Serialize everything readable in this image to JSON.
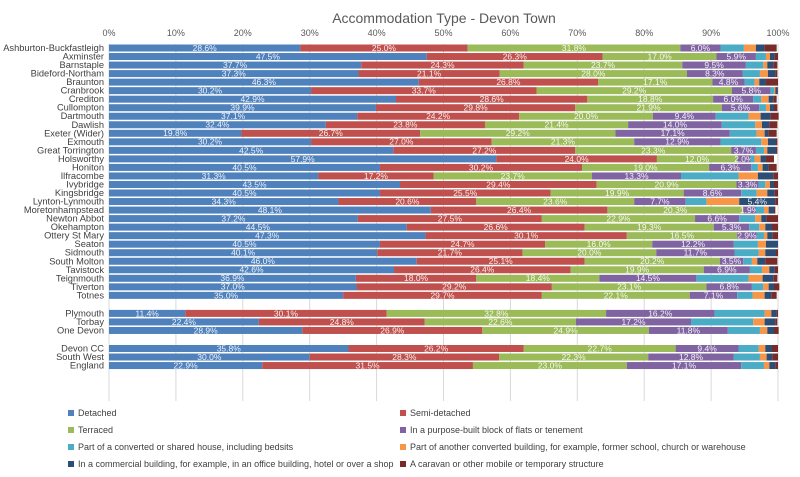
{
  "chart_data": {
    "type": "bar",
    "orientation": "horizontal",
    "stacked": "100%",
    "title": "Accommodation Type - Devon Town",
    "xlim": [
      0,
      100
    ],
    "x_ticks": [
      "0%",
      "10%",
      "20%",
      "30%",
      "40%",
      "50%",
      "60%",
      "70%",
      "80%",
      "90%",
      "100%"
    ],
    "grid": true,
    "legend_position": "bottom",
    "series_names": [
      "Detached",
      "Semi-detached",
      "Terraced",
      "In a purpose-built block of flats or tenement",
      "Part of a converted or shared house, including bedsits",
      "Part of another converted building, for example, former school, church or warehouse",
      "In a commercial building, for example, in an office building, hotel or over a shop",
      "A caravan or other mobile or temporary structure"
    ],
    "colors": [
      "#4f81bd",
      "#c0504d",
      "#9bbb59",
      "#8064a2",
      "#4bacc6",
      "#f79646",
      "#2c4d75",
      "#772c2a"
    ],
    "groups": [
      [
        {
          "category": "Ashburton-Buckfastleigh",
          "values": [
            28.6,
            25.0,
            31.8,
            6.0,
            3.5,
            1.8,
            1.3,
            1.8
          ]
        },
        {
          "category": "Axminster",
          "values": [
            47.5,
            26.3,
            17.0,
            5.9,
            1.5,
            0.6,
            0.7,
            0.5
          ]
        },
        {
          "category": "Barnstaple",
          "values": [
            37.7,
            24.3,
            23.7,
            9.5,
            2.6,
            0.6,
            0.9,
            0.6
          ]
        },
        {
          "category": "Bideford-Northam",
          "values": [
            37.3,
            21.1,
            28.0,
            8.3,
            2.6,
            1.2,
            1.1,
            0.3
          ]
        },
        {
          "category": "Braunton",
          "values": [
            46.3,
            26.8,
            17.1,
            4.8,
            1.5,
            0.7,
            1.0,
            1.8
          ]
        },
        {
          "category": "Cranbrook",
          "values": [
            30.2,
            33.7,
            29.2,
            5.8,
            0.5,
            0.2,
            0.3,
            0.1
          ]
        },
        {
          "category": "Crediton",
          "values": [
            42.9,
            28.6,
            18.8,
            6.0,
            1.2,
            1.1,
            0.7,
            0.5
          ]
        },
        {
          "category": "Cullompton",
          "values": [
            39.9,
            29.8,
            21.9,
            5.6,
            1.0,
            0.6,
            0.6,
            0.5
          ]
        },
        {
          "category": "Dartmouth",
          "values": [
            37.1,
            24.2,
            20.0,
            9.4,
            4.9,
            1.8,
            1.5,
            1.2
          ]
        },
        {
          "category": "Dawlish",
          "values": [
            32.4,
            23.8,
            21.4,
            14.0,
            5.0,
            1.0,
            1.1,
            1.2
          ]
        },
        {
          "category": "Exeter (Wider)",
          "values": [
            19.8,
            26.7,
            29.2,
            17.1,
            4.0,
            1.2,
            0.6,
            1.2
          ]
        },
        {
          "category": "Exmouth",
          "values": [
            30.2,
            27.0,
            21.3,
            12.9,
            6.1,
            1.0,
            1.2,
            0.2
          ]
        },
        {
          "category": "Great Torrington",
          "values": [
            42.5,
            27.2,
            23.3,
            3.7,
            1.2,
            0.5,
            1.3,
            0.2
          ]
        },
        {
          "category": "Holsworthy",
          "values": [
            57.9,
            24.0,
            12.0,
            2.0,
            0.6,
            0.9,
            0.8,
            1.2
          ]
        },
        {
          "category": "Honiton",
          "values": [
            40.5,
            30.2,
            19.0,
            6.3,
            1.0,
            0.7,
            0.9,
            1.2
          ]
        },
        {
          "category": "Ilfracombe",
          "values": [
            31.3,
            17.2,
            23.7,
            13.3,
            8.6,
            2.9,
            2.3,
            0.7
          ]
        },
        {
          "category": "Ivybridge",
          "values": [
            43.5,
            29.4,
            20.9,
            3.3,
            1.0,
            0.7,
            0.6,
            0.6
          ]
        },
        {
          "category": "Kingsbridge",
          "values": [
            40.5,
            25.5,
            19.9,
            8.6,
            2.3,
            1.6,
            1.1,
            0.5
          ]
        },
        {
          "category": "Lynton-Lynmouth",
          "values": [
            34.3,
            20.6,
            23.6,
            7.7,
            3.1,
            4.9,
            5.4,
            0.4
          ]
        },
        {
          "category": "Moretonhampstead",
          "values": [
            48.1,
            26.4,
            20.3,
            1.9,
            1.2,
            0.7,
            0.8,
            0.2
          ]
        },
        {
          "category": "Newton Abbot",
          "values": [
            37.2,
            27.5,
            22.9,
            6.6,
            2.4,
            0.9,
            0.8,
            1.7
          ]
        },
        {
          "category": "Okehampton",
          "values": [
            44.5,
            26.6,
            19.3,
            5.3,
            1.5,
            0.9,
            1.0,
            0.9
          ]
        },
        {
          "category": "Ottery St Mary",
          "values": [
            47.3,
            30.1,
            16.5,
            2.9,
            1.1,
            0.5,
            0.8,
            0.8
          ]
        },
        {
          "category": "Seaton",
          "values": [
            40.5,
            24.7,
            16.0,
            12.2,
            3.6,
            1.2,
            1.8,
            0.0
          ]
        },
        {
          "category": "Sidmouth",
          "values": [
            40.1,
            21.7,
            20.0,
            11.7,
            3.6,
            1.0,
            1.6,
            0.3
          ]
        },
        {
          "category": "South Molton",
          "values": [
            46.0,
            25.1,
            20.2,
            3.5,
            1.3,
            0.8,
            1.2,
            1.8
          ]
        },
        {
          "category": "Tavistock",
          "values": [
            42.6,
            26.4,
            19.9,
            6.9,
            1.8,
            1.1,
            0.8,
            0.5
          ]
        },
        {
          "category": "Teignmouth",
          "values": [
            36.9,
            18.0,
            18.4,
            14.5,
            7.8,
            2.1,
            1.6,
            0.6
          ]
        },
        {
          "category": "Tiverton",
          "values": [
            37.0,
            29.2,
            23.1,
            6.8,
            1.7,
            0.8,
            0.8,
            0.8
          ]
        },
        {
          "category": "Totnes",
          "values": [
            35.0,
            29.7,
            22.1,
            7.1,
            2.3,
            1.8,
            1.0,
            0.8
          ]
        }
      ],
      [
        {
          "category": "Plymouth",
          "values": [
            11.4,
            30.1,
            32.8,
            16.2,
            7.5,
            1.0,
            0.8,
            0.2
          ]
        },
        {
          "category": "Torbay",
          "values": [
            22.4,
            24.8,
            22.6,
            17.2,
            9.3,
            1.7,
            1.6,
            0.3
          ]
        },
        {
          "category": "One Devon",
          "values": [
            28.9,
            26.9,
            24.9,
            11.8,
            4.8,
            1.1,
            1.0,
            0.7
          ]
        }
      ],
      [
        {
          "category": "Devon CC",
          "values": [
            35.8,
            26.2,
            22.7,
            9.4,
            3.0,
            1.0,
            1.0,
            0.9
          ]
        },
        {
          "category": "South West",
          "values": [
            30.0,
            28.3,
            22.3,
            12.8,
            3.9,
            1.0,
            0.9,
            0.8
          ]
        },
        {
          "category": "England",
          "values": [
            22.9,
            31.5,
            23.0,
            17.1,
            3.4,
            0.8,
            0.9,
            0.4
          ]
        }
      ]
    ],
    "labeled_series_count": 4,
    "extra_labels": [
      {
        "category": "Lynton-Lynmouth",
        "series": "In a commercial building, for example, in an office building, hotel or over a shop",
        "value": 5.4
      }
    ]
  }
}
